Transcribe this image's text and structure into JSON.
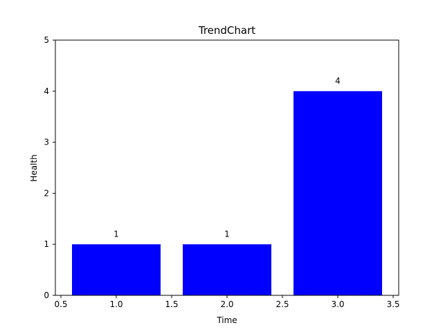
{
  "chart_data": {
    "type": "bar",
    "title": "TrendChart",
    "xlabel": "Time",
    "ylabel": "Health",
    "x": [
      1.0,
      2.0,
      3.0
    ],
    "values": [
      1,
      1,
      4
    ],
    "data_labels": [
      "1",
      "1",
      "4"
    ],
    "bar_width": 0.8,
    "xlim": [
      0.45,
      3.55
    ],
    "ylim": [
      0,
      5
    ],
    "xticks": [
      0.5,
      1.0,
      1.5,
      2.0,
      2.5,
      3.0,
      3.5
    ],
    "xtick_labels": [
      "0.5",
      "1.0",
      "1.5",
      "2.0",
      "2.5",
      "3.0",
      "3.5"
    ],
    "yticks": [
      0,
      1,
      2,
      3,
      4,
      5
    ],
    "ytick_labels": [
      "0",
      "1",
      "2",
      "3",
      "4",
      "5"
    ],
    "grid": false,
    "legend": "none",
    "bar_color": "#0000ff"
  }
}
